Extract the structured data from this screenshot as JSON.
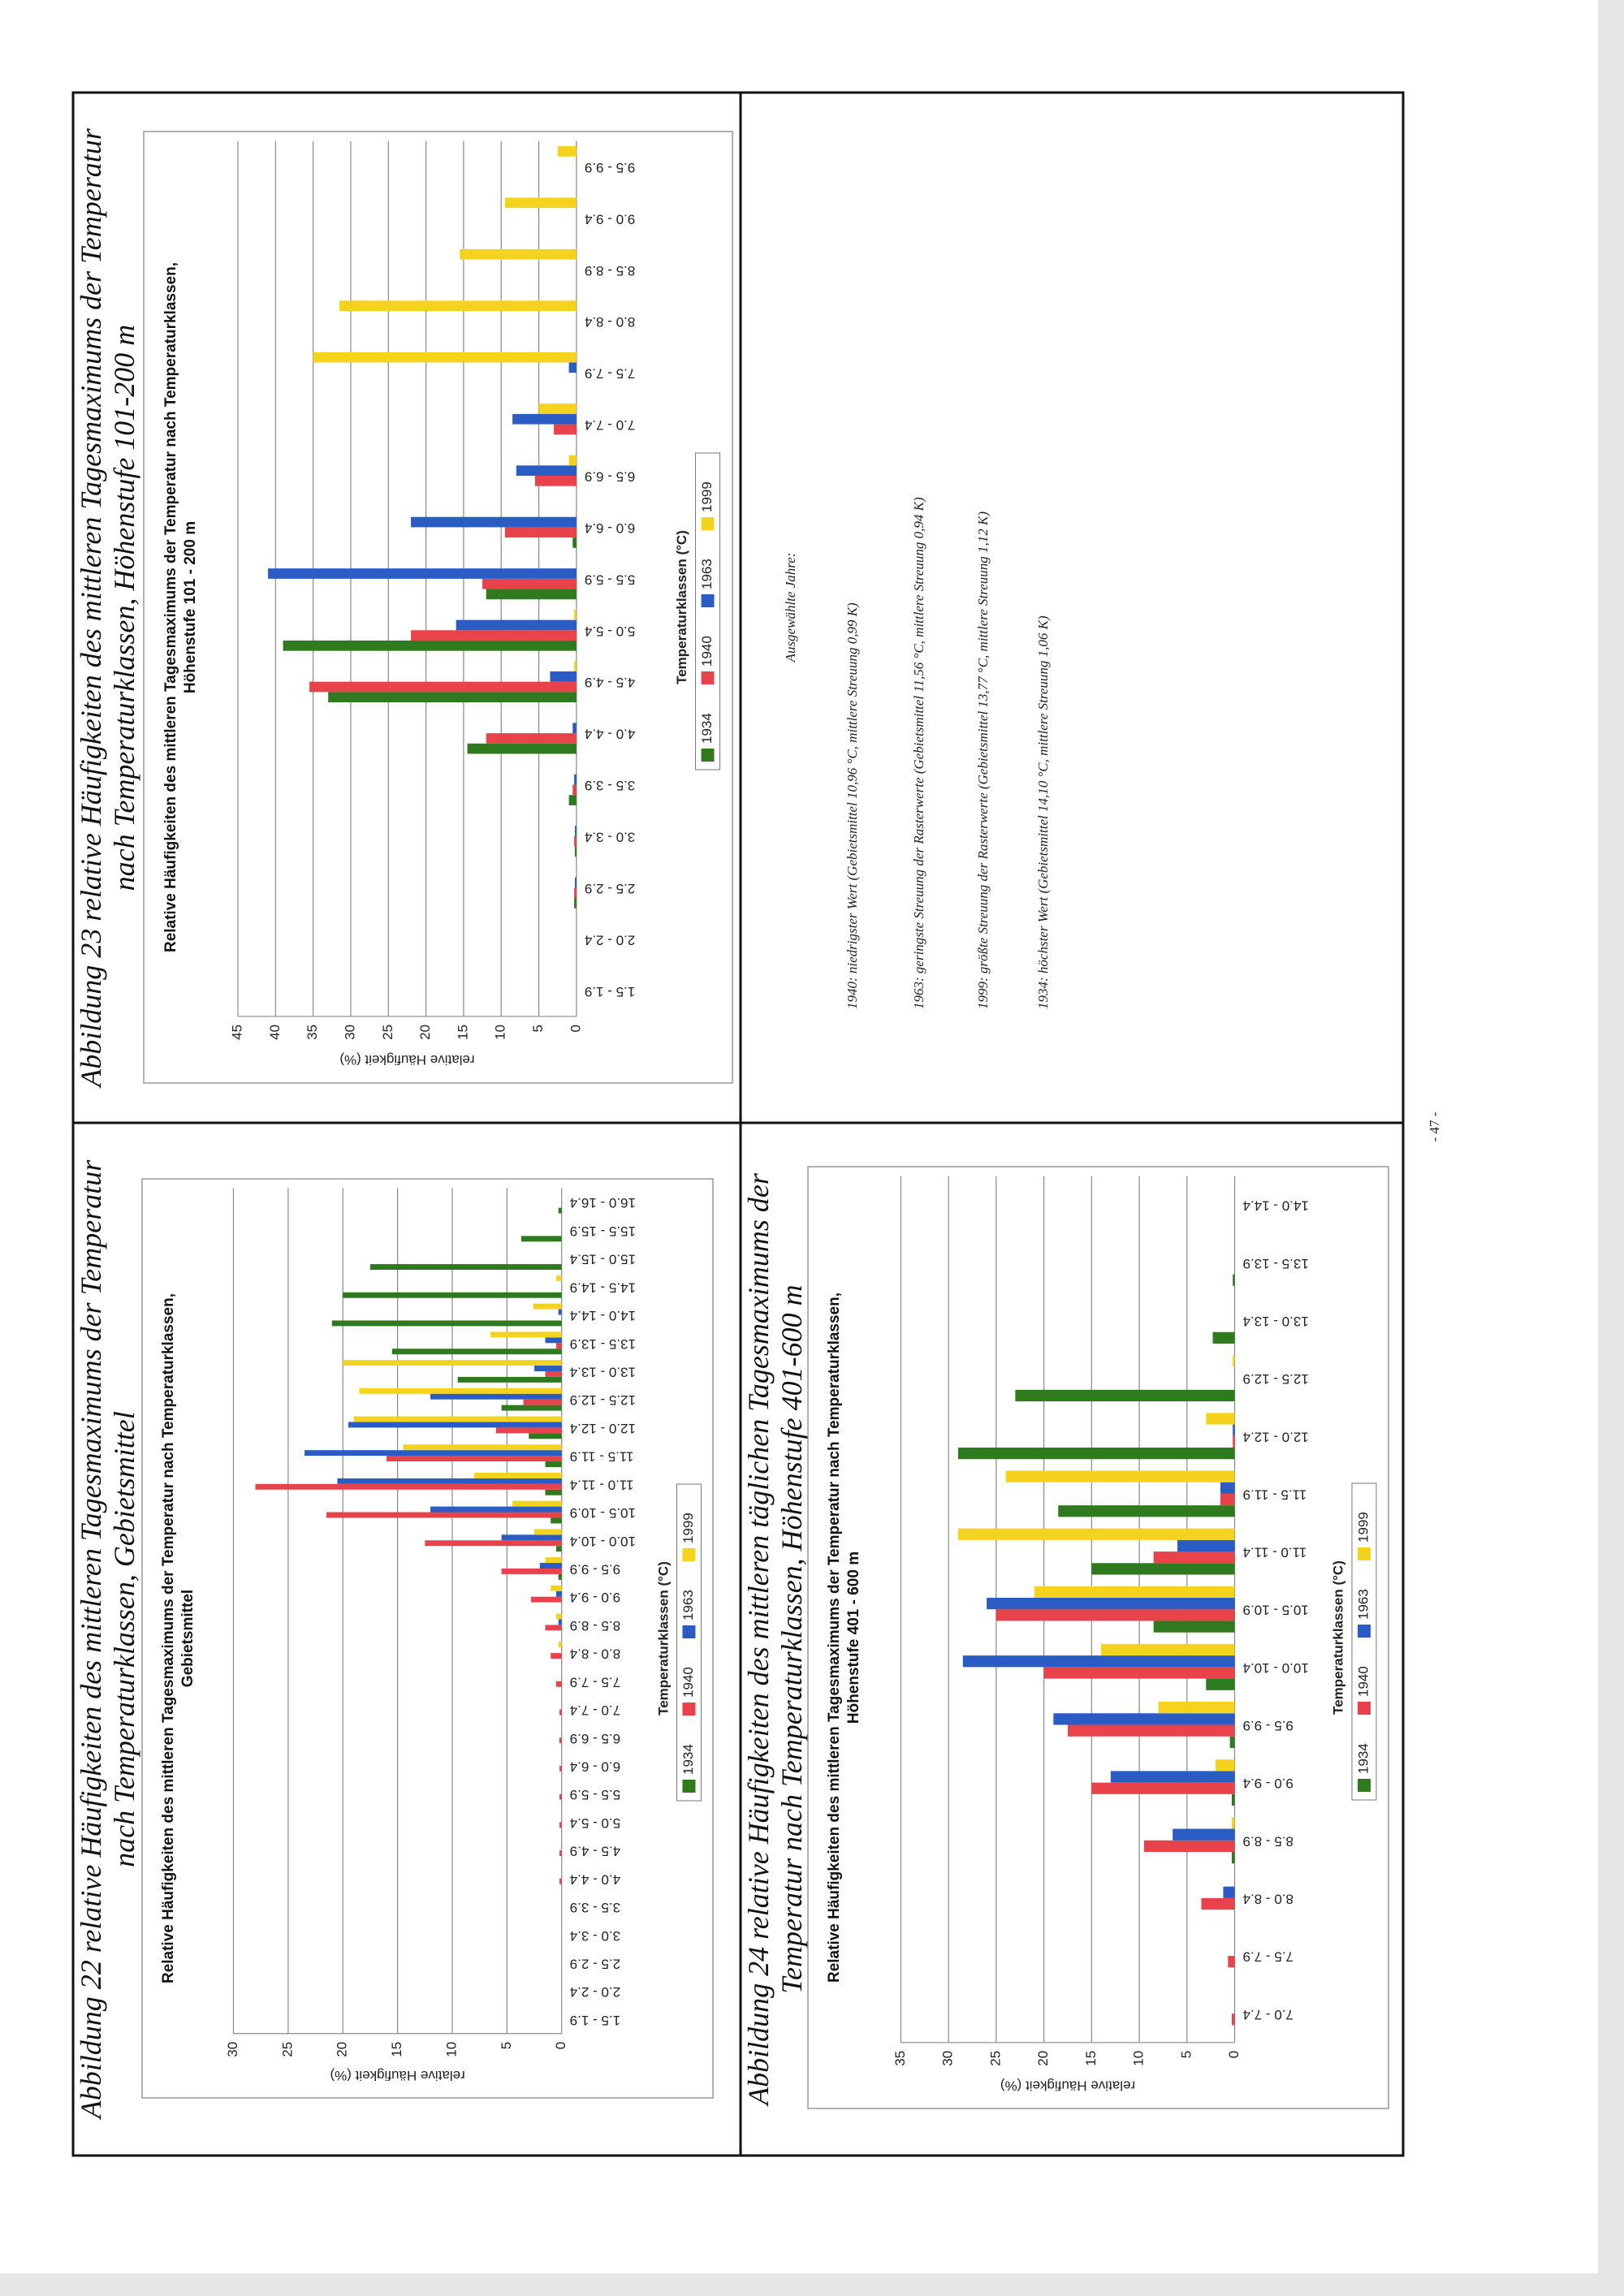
{
  "chart_data": [
    {
      "type": "bar",
      "caption": "Abbildung 22 relative Häufigkeiten des mittleren Tagesmaximums der Temperatur nach Temperaturklassen, Gebietsmittel",
      "title": "Relative Häufigkeiten des mittleren Tagesmaximums der Temperatur nach Temperaturklassen, Gebietsmittel",
      "xlabel": "Temperaturklassen (°C)",
      "ylabel": "relative Häufigkeit (%)",
      "categories": [
        "1.5 - 1.9",
        "2.0 - 2.4",
        "2.5 - 2.9",
        "3.0 - 3.4",
        "3.5 - 3.9",
        "4.0 - 4.4",
        "4.5 - 4.9",
        "5.0 - 5.4",
        "5.5 - 5.9",
        "6.0 - 6.4",
        "6.5 - 6.9",
        "7.0 - 7.4",
        "7.5 - 7.9",
        "8.0 - 8.4",
        "8.5 - 8.9",
        "9.0 - 9.4",
        "9.5 - 9.9",
        "10.0 - 10.4",
        "10.5 - 10.9",
        "11.0 - 11.4",
        "11.5 - 11.9",
        "12.0 - 12.4",
        "12.5 - 12.9",
        "13.0 - 13.4",
        "13.5 - 13.9",
        "14.0 - 14.4",
        "14.5 - 14.9",
        "15.0 - 15.4",
        "15.5 - 15.9",
        "16.0 - 16.4"
      ],
      "series": [
        {
          "name": "1934",
          "color": "#2f7a1f",
          "values": [
            0,
            0,
            0,
            0,
            0,
            0,
            0,
            0,
            0,
            0,
            0,
            0,
            0,
            0,
            0,
            0,
            0.3,
            0.5,
            1,
            1.5,
            1.5,
            3,
            5.5,
            9.5,
            15.5,
            21,
            20,
            17.5,
            3.7,
            0.3
          ]
        },
        {
          "name": "1940",
          "color": "#e8434a",
          "values": [
            0,
            0,
            0,
            0,
            0,
            0.2,
            0.2,
            0.2,
            0.2,
            0.2,
            0.2,
            0.2,
            0.5,
            1,
            1.5,
            2.8,
            5.5,
            12.5,
            21.5,
            28,
            16,
            6,
            3.5,
            1.5,
            0.5,
            0,
            0,
            0,
            0,
            0
          ]
        },
        {
          "name": "1963",
          "color": "#2a5cc4",
          "values": [
            0,
            0,
            0,
            0,
            0,
            0,
            0,
            0,
            0,
            0,
            0,
            0,
            0,
            0,
            0.3,
            0.5,
            2,
            5.5,
            12,
            20.5,
            23.5,
            19.5,
            12,
            2.5,
            1.5,
            0.3,
            0,
            0,
            0,
            0
          ]
        },
        {
          "name": "1999",
          "color": "#f5d21e",
          "values": [
            0,
            0,
            0,
            0,
            0,
            0,
            0,
            0,
            0,
            0,
            0,
            0,
            0,
            0.3,
            0.5,
            1,
            1.5,
            2.5,
            4.5,
            8,
            14.5,
            19,
            18.5,
            20,
            6.5,
            2.6,
            0.5,
            0,
            0,
            0
          ]
        }
      ],
      "ylim": [
        0,
        30
      ],
      "yticks": [
        0,
        5,
        10,
        15,
        20,
        25,
        30
      ],
      "grid": true,
      "legend": "bottom"
    },
    {
      "type": "bar",
      "caption": "Abbildung 23 relative Häufigkeiten des mittleren Tagesmaximums der Temperatur nach Temperaturklassen, Höhenstufe 101-200 m",
      "title": "Relative Häufigkeiten des mittleren Tagesmaximums der Temperatur nach Temperaturklassen, Höhenstufe 101 - 200 m",
      "xlabel": "Temperaturklassen (°C)",
      "ylabel": "relative Häufigkeit (%)",
      "categories": [
        "1.5 - 1.9",
        "2.0 - 2.4",
        "2.5 - 2.9",
        "3.0 - 3.4",
        "3.5 - 3.9",
        "4.0 - 4.4",
        "4.5 - 4.9",
        "5.0 - 5.4",
        "5.5 - 5.9",
        "6.0 - 6.4",
        "6.5 - 6.9",
        "7.0 - 7.4",
        "7.5 - 7.9",
        "8.0 - 8.4",
        "8.5 - 8.9",
        "9.0 - 9.4",
        "9.5 - 9.9"
      ],
      "series": [
        {
          "name": "1934",
          "color": "#2f7a1f",
          "values": [
            0,
            0,
            0.3,
            0.2,
            1,
            14.5,
            33,
            39,
            12,
            0.5,
            0,
            0,
            0,
            0,
            0,
            0,
            0
          ]
        },
        {
          "name": "1940",
          "color": "#e8434a",
          "values": [
            0,
            0,
            0.3,
            0.3,
            0.5,
            12,
            35.5,
            22,
            12.5,
            9.5,
            5.5,
            3,
            0,
            0,
            0,
            0,
            0
          ]
        },
        {
          "name": "1963",
          "color": "#2a5cc4",
          "values": [
            0,
            0,
            0.2,
            0.2,
            0.3,
            0.5,
            3.5,
            16,
            41,
            22,
            8,
            8.5,
            1,
            0,
            0,
            0,
            0
          ]
        },
        {
          "name": "1999",
          "color": "#f5d21e",
          "values": [
            0,
            0,
            0,
            0,
            0,
            0,
            0.3,
            0.3,
            0,
            0,
            1,
            5,
            35,
            31.5,
            15.5,
            9.5,
            2.5
          ]
        }
      ],
      "ylim": [
        0,
        45
      ],
      "yticks": [
        0,
        5,
        10,
        15,
        20,
        25,
        30,
        35,
        40,
        45
      ],
      "grid": true,
      "legend": "bottom"
    },
    {
      "type": "bar",
      "caption": "Abbildung 24 relative Häufigkeiten des mittleren täglichen Tagesmaximums der Temperatur nach Temperaturklassen, Höhenstufe 401-600 m",
      "title": "Relative Häufigkeiten des mittleren Tagesmaximums der Temperatur nach Temperaturklassen, Höhenstufe 401 - 600 m",
      "xlabel": "Temperaturklassen (°C)",
      "ylabel": "relative Häufigkeit (%)",
      "categories": [
        "7.0 - 7.4",
        "7.5 - 7.9",
        "8.0 - 8.4",
        "8.5 - 8.9",
        "9.0 - 9.4",
        "9.5 - 9.9",
        "10.0 - 10.4",
        "10.5 - 10.9",
        "11.0 - 11.4",
        "11.5 - 11.9",
        "12.0 - 12.4",
        "12.5 - 12.9",
        "13.0 - 13.4",
        "13.5 - 13.9",
        "14.0 - 14.4"
      ],
      "series": [
        {
          "name": "1934",
          "color": "#2f7a1f",
          "values": [
            0,
            0,
            0,
            0.3,
            0.3,
            0.5,
            3,
            8.5,
            15,
            18.5,
            29,
            23,
            2.3,
            0.2,
            0
          ]
        },
        {
          "name": "1940",
          "color": "#e8434a",
          "values": [
            0.3,
            0.7,
            3.5,
            9.5,
            15,
            17.5,
            20,
            25,
            8.5,
            1.5,
            0.2,
            0,
            0,
            0,
            0
          ]
        },
        {
          "name": "1963",
          "color": "#2a5cc4",
          "values": [
            0,
            0,
            1.2,
            6.5,
            13,
            19,
            28.5,
            26,
            6,
            1.5,
            0.2,
            0,
            0,
            0,
            0
          ]
        },
        {
          "name": "1999",
          "color": "#f5d21e",
          "values": [
            0,
            0,
            0,
            0.3,
            2,
            8,
            14,
            21,
            29,
            24,
            3,
            0.2,
            0,
            0,
            0
          ]
        }
      ],
      "ylim": [
        0,
        35
      ],
      "yticks": [
        0,
        5,
        10,
        15,
        20,
        25,
        30,
        35
      ],
      "grid": true,
      "legend": "bottom"
    }
  ],
  "notes": {
    "heading": "Ausgewählte Jahre:",
    "lines": [
      "1940: niedrigster Wert (Gebietsmittel 10,96 °C, mittlere Streuung 0,99 K)",
      "1963: geringste Streuung der Rasterwerte (Gebietsmittel 11,56 °C, mittlere Streuung 0,94 K)",
      "1999: größte Streuung der Rasterwerte (Gebietsmittel 13,77 °C, mittlere Streuung 1,12 K)",
      "1934: höchster Wert (Gebietsmittel 14,10 °C, mittlere Streuung 1,06 K)"
    ]
  },
  "page_number": "- 47 -"
}
